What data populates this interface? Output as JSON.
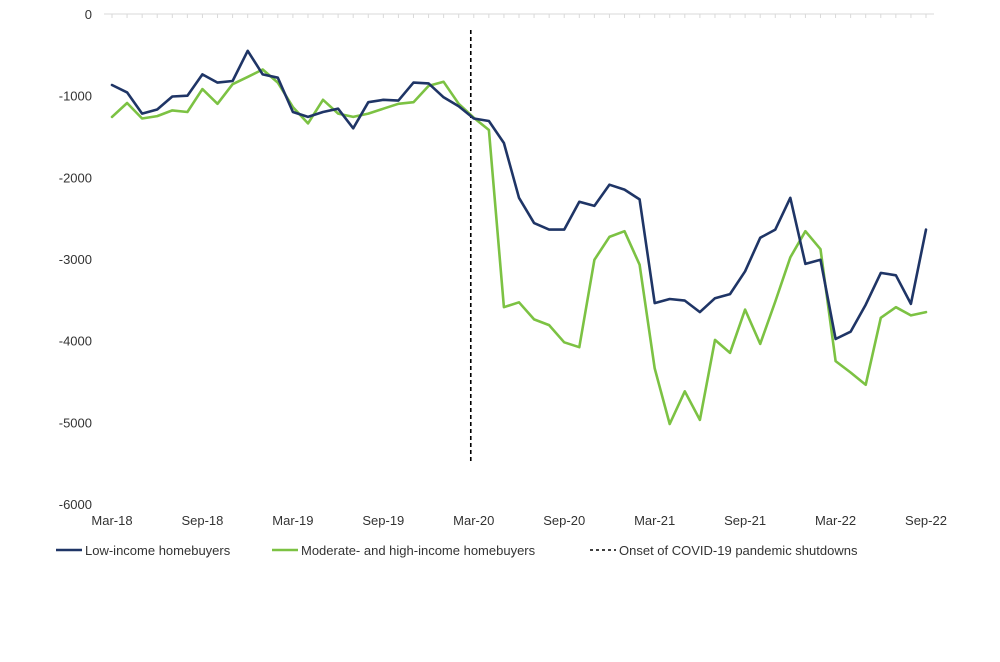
{
  "chart_data": {
    "type": "line",
    "title": "",
    "xlabel": "",
    "ylabel": "",
    "ylim": [
      -6000,
      0
    ],
    "yticks": [
      0,
      -1000,
      -2000,
      -3000,
      -4000,
      -5000,
      -6000
    ],
    "ytick_labels": [
      "0",
      "-1000",
      "-2000",
      "-3000",
      "-4000",
      "-5000",
      "-6000"
    ],
    "x": [
      "Mar-18",
      "Apr-18",
      "May-18",
      "Jun-18",
      "Jul-18",
      "Aug-18",
      "Sep-18",
      "Oct-18",
      "Nov-18",
      "Dec-18",
      "Jan-19",
      "Feb-19",
      "Mar-19",
      "Apr-19",
      "May-19",
      "Jun-19",
      "Jul-19",
      "Aug-19",
      "Sep-19",
      "Oct-19",
      "Nov-19",
      "Dec-19",
      "Jan-20",
      "Feb-20",
      "Mar-20",
      "Apr-20",
      "May-20",
      "Jun-20",
      "Jul-20",
      "Aug-20",
      "Sep-20",
      "Oct-20",
      "Nov-20",
      "Dec-20",
      "Jan-21",
      "Feb-21",
      "Mar-21",
      "Apr-21",
      "May-21",
      "Jun-21",
      "Jul-21",
      "Aug-21",
      "Sep-21",
      "Oct-21",
      "Nov-21",
      "Dec-21",
      "Jan-22",
      "Feb-22",
      "Mar-22",
      "Apr-22",
      "May-22",
      "Jun-22",
      "Jul-22",
      "Aug-22",
      "Sep-22"
    ],
    "xtick_labels": [
      "Mar-18",
      "Sep-18",
      "Mar-19",
      "Sep-19",
      "Mar-20",
      "Sep-20",
      "Mar-21",
      "Sep-21",
      "Mar-22",
      "Sep-22"
    ],
    "series": [
      {
        "name": "Low-income homebuyers",
        "color": "#1f3566",
        "values": [
          -870,
          -960,
          -1220,
          -1170,
          -1010,
          -1000,
          -740,
          -840,
          -820,
          -450,
          -740,
          -780,
          -1200,
          -1260,
          -1200,
          -1160,
          -1400,
          -1080,
          -1050,
          -1060,
          -840,
          -850,
          -1020,
          -1130,
          -1280,
          -1310,
          -1580,
          -2250,
          -2560,
          -2640,
          -2640,
          -2300,
          -2350,
          -2090,
          -2150,
          -2270,
          -3540,
          -3490,
          -3510,
          -3650,
          -3480,
          -3430,
          -3150,
          -2740,
          -2640,
          -2250,
          -3060,
          -3010,
          -3980,
          -3890,
          -3560,
          -3170,
          -3200,
          -3550,
          -2640
        ]
      },
      {
        "name": "Moderate- and high-income homebuyers",
        "color": "#7cc243",
        "values": [
          -1260,
          -1090,
          -1280,
          -1250,
          -1180,
          -1200,
          -920,
          -1100,
          -860,
          -770,
          -680,
          -840,
          -1140,
          -1340,
          -1050,
          -1220,
          -1260,
          -1220,
          -1160,
          -1100,
          -1080,
          -880,
          -830,
          -1100,
          -1270,
          -1420,
          -3590,
          -3530,
          -3740,
          -3810,
          -4020,
          -4080,
          -3010,
          -2730,
          -2660,
          -3070,
          -4340,
          -5020,
          -4620,
          -4970,
          -3990,
          -4150,
          -3620,
          -4040,
          -3520,
          -2980,
          -2660,
          -2880,
          -4250,
          -4390,
          -4540,
          -3720,
          -3590,
          -3690,
          -3650
        ]
      }
    ],
    "reference_line": {
      "name": "Onset of COVID-19 pandemic shutdowns",
      "x": "Mar-20",
      "y_from": 0,
      "y_to": -5500,
      "color": "#000000",
      "style": "dashed"
    },
    "grid": false,
    "legend_position": "bottom-left"
  }
}
